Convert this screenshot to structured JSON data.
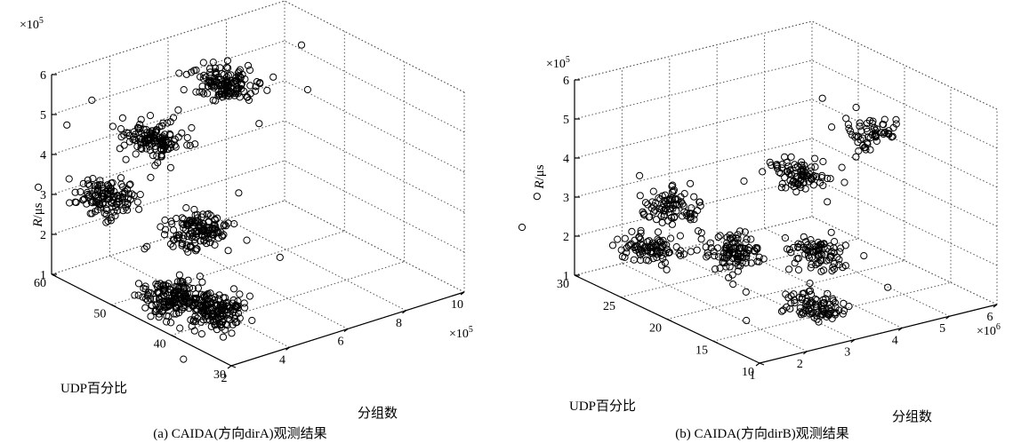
{
  "chart_data": [
    {
      "type": "scatter",
      "projection": "3d",
      "zlabel": "R/μs",
      "zlabel_italic": "R",
      "zlabel_unit": "/μs",
      "ylabel": "UDP百分比",
      "xlabel": "分组数",
      "z_multiplier": "×10",
      "z_exp": "5",
      "x_multiplier": "×10",
      "x_exp": "5",
      "xlim": [
        2,
        10
      ],
      "ylim": [
        30,
        60
      ],
      "zlim": [
        1,
        6
      ],
      "x_ticks": [
        "2",
        "4",
        "6",
        "8",
        "10"
      ],
      "y_ticks": [
        "30",
        "40",
        "50",
        "60"
      ],
      "z_ticks": [
        "1",
        "2",
        "3",
        "4",
        "5",
        "6"
      ],
      "grid": true,
      "caption": "(a) CAIDA(方向dirA)观测结果",
      "clusters": [
        {
          "x": 2.0,
          "y": 51,
          "z": 3.6,
          "n": 130
        },
        {
          "x": 4.1,
          "y": 53,
          "z": 4.4,
          "n": 140
        },
        {
          "x": 7.0,
          "y": 55,
          "z": 5.0,
          "n": 150
        },
        {
          "x": 3.8,
          "y": 44,
          "z": 2.9,
          "n": 150
        },
        {
          "x": 2.4,
          "y": 42,
          "z": 1.7,
          "n": 170
        },
        {
          "x": 2.3,
          "y": 34,
          "z": 2.0,
          "n": 170
        }
      ]
    },
    {
      "type": "scatter",
      "projection": "3d",
      "zlabel": "R/μs",
      "zlabel_italic": "R",
      "zlabel_unit": "/μs",
      "ylabel": "UDP百分比",
      "xlabel": "分组数",
      "z_multiplier": "×10",
      "z_exp": "5",
      "x_multiplier": "×10",
      "x_exp": "6",
      "xlim": [
        1,
        6
      ],
      "ylim": [
        10,
        30
      ],
      "zlim": [
        1,
        6
      ],
      "x_ticks": [
        "1",
        "2",
        "3",
        "4",
        "5",
        "6"
      ],
      "y_ticks": [
        "10",
        "15",
        "20",
        "25",
        "30"
      ],
      "z_ticks": [
        "1",
        "2",
        "3",
        "4",
        "5",
        "6"
      ],
      "grid": true,
      "caption": "(b) CAIDA(方向dirB)观测结果",
      "clusters": [
        {
          "x": 1.0,
          "y": 22,
          "z": 2.6,
          "n": 90
        },
        {
          "x": 1.7,
          "y": 23,
          "z": 3.3,
          "n": 90
        },
        {
          "x": 2.0,
          "y": 18,
          "z": 2.6,
          "n": 110
        },
        {
          "x": 2.7,
          "y": 13,
          "z": 1.6,
          "n": 90
        },
        {
          "x": 4.2,
          "y": 22,
          "z": 3.5,
          "n": 90
        },
        {
          "x": 3.2,
          "y": 15,
          "z": 2.6,
          "n": 90
        },
        {
          "x": 4.9,
          "y": 18,
          "z": 4.8,
          "n": 60
        }
      ]
    }
  ]
}
